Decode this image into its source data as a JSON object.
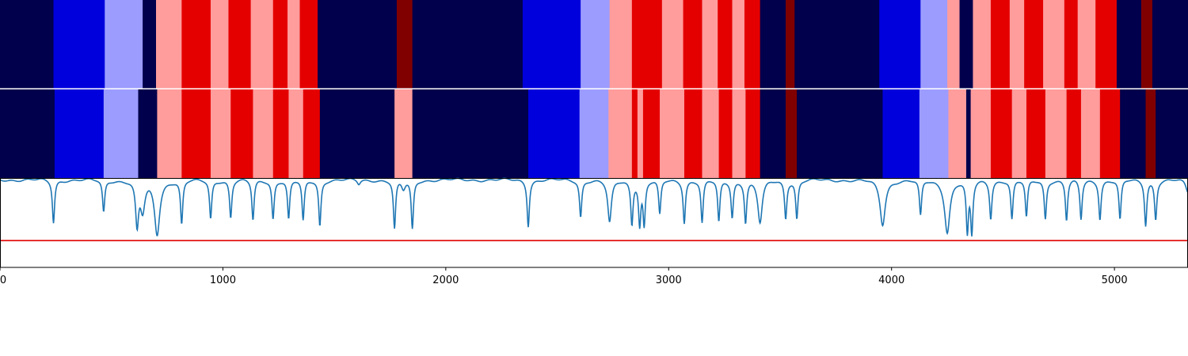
{
  "chart_data": {
    "type": "heatmap",
    "title": "",
    "xlabel": "",
    "ylabel": "",
    "xlim": [
      0,
      5330
    ],
    "xticks": [
      0,
      1000,
      2000,
      3000,
      4000,
      5000
    ],
    "xtick_labels": [
      "0",
      "1000",
      "2000",
      "3000",
      "4000",
      "5000"
    ],
    "grid": false,
    "legend": "none",
    "class_colors": [
      "#00004c",
      "#0000dd",
      "#9c9cff",
      "#ff9c9c",
      "#e50000",
      "#800000"
    ],
    "rows": [
      {
        "name": "",
        "segments": [
          [
            0,
            240,
            0
          ],
          [
            240,
            470,
            1
          ],
          [
            470,
            640,
            2
          ],
          [
            640,
            700,
            0
          ],
          [
            700,
            815,
            3
          ],
          [
            815,
            945,
            4
          ],
          [
            945,
            1025,
            3
          ],
          [
            1025,
            1125,
            4
          ],
          [
            1125,
            1225,
            3
          ],
          [
            1225,
            1290,
            4
          ],
          [
            1290,
            1345,
            3
          ],
          [
            1345,
            1425,
            4
          ],
          [
            1425,
            1780,
            0
          ],
          [
            1780,
            1850,
            5
          ],
          [
            1850,
            2345,
            0
          ],
          [
            2345,
            2605,
            1
          ],
          [
            2605,
            2735,
            2
          ],
          [
            2735,
            2835,
            3
          ],
          [
            2835,
            2970,
            4
          ],
          [
            2970,
            3065,
            3
          ],
          [
            3065,
            3150,
            4
          ],
          [
            3150,
            3220,
            3
          ],
          [
            3220,
            3285,
            4
          ],
          [
            3285,
            3340,
            3
          ],
          [
            3340,
            3410,
            4
          ],
          [
            3410,
            3525,
            0
          ],
          [
            3525,
            3565,
            5
          ],
          [
            3565,
            3945,
            0
          ],
          [
            3945,
            4130,
            1
          ],
          [
            4130,
            4250,
            2
          ],
          [
            4250,
            4305,
            3
          ],
          [
            4305,
            4365,
            0
          ],
          [
            4365,
            4445,
            3
          ],
          [
            4445,
            4530,
            4
          ],
          [
            4530,
            4595,
            3
          ],
          [
            4595,
            4680,
            4
          ],
          [
            4680,
            4775,
            3
          ],
          [
            4775,
            4835,
            4
          ],
          [
            4835,
            4915,
            3
          ],
          [
            4915,
            5010,
            4
          ],
          [
            5010,
            5120,
            0
          ],
          [
            5120,
            5170,
            5
          ],
          [
            5170,
            5330,
            0
          ]
        ]
      },
      {
        "name": "",
        "segments": [
          [
            0,
            245,
            0
          ],
          [
            245,
            465,
            1
          ],
          [
            465,
            620,
            2
          ],
          [
            620,
            705,
            0
          ],
          [
            705,
            815,
            3
          ],
          [
            815,
            945,
            4
          ],
          [
            945,
            1035,
            3
          ],
          [
            1035,
            1135,
            4
          ],
          [
            1135,
            1225,
            3
          ],
          [
            1225,
            1295,
            4
          ],
          [
            1295,
            1360,
            3
          ],
          [
            1360,
            1435,
            4
          ],
          [
            1435,
            1770,
            0
          ],
          [
            1770,
            1850,
            3
          ],
          [
            1850,
            2370,
            0
          ],
          [
            2370,
            2600,
            1
          ],
          [
            2600,
            2730,
            2
          ],
          [
            2730,
            2835,
            3
          ],
          [
            2835,
            2860,
            4
          ],
          [
            2860,
            2885,
            3
          ],
          [
            2885,
            2960,
            4
          ],
          [
            2960,
            3070,
            3
          ],
          [
            3070,
            3150,
            4
          ],
          [
            3150,
            3225,
            3
          ],
          [
            3225,
            3285,
            4
          ],
          [
            3285,
            3345,
            3
          ],
          [
            3345,
            3410,
            4
          ],
          [
            3410,
            3525,
            0
          ],
          [
            3525,
            3575,
            5
          ],
          [
            3575,
            3960,
            0
          ],
          [
            3960,
            4125,
            1
          ],
          [
            4125,
            4255,
            2
          ],
          [
            4255,
            4335,
            3
          ],
          [
            4335,
            4355,
            0
          ],
          [
            4355,
            4445,
            3
          ],
          [
            4445,
            4540,
            4
          ],
          [
            4540,
            4605,
            3
          ],
          [
            4605,
            4690,
            4
          ],
          [
            4690,
            4785,
            3
          ],
          [
            4785,
            4850,
            4
          ],
          [
            4850,
            4935,
            3
          ],
          [
            4935,
            5025,
            4
          ],
          [
            5025,
            5140,
            0
          ],
          [
            5140,
            5185,
            5
          ],
          [
            5185,
            5330,
            0
          ]
        ]
      }
    ],
    "line": {
      "color": "#1f77b4",
      "y_range": [
        0,
        1
      ],
      "baseline": 0.98,
      "dips": [
        [
          240,
          0.5,
          6
        ],
        [
          465,
          0.62,
          6
        ],
        [
          615,
          0.48,
          8
        ],
        [
          640,
          0.65,
          12
        ],
        [
          705,
          0.38,
          14
        ],
        [
          815,
          0.49,
          6
        ],
        [
          945,
          0.55,
          6
        ],
        [
          1035,
          0.56,
          6
        ],
        [
          1135,
          0.53,
          6
        ],
        [
          1225,
          0.55,
          6
        ],
        [
          1295,
          0.54,
          6
        ],
        [
          1360,
          0.52,
          6
        ],
        [
          1435,
          0.47,
          6
        ],
        [
          1610,
          0.93,
          8
        ],
        [
          1770,
          0.43,
          6
        ],
        [
          1810,
          0.88,
          10
        ],
        [
          1850,
          0.43,
          6
        ],
        [
          2370,
          0.47,
          6
        ],
        [
          2605,
          0.57,
          6
        ],
        [
          2735,
          0.5,
          10
        ],
        [
          2835,
          0.5,
          6
        ],
        [
          2870,
          0.5,
          6
        ],
        [
          2890,
          0.49,
          6
        ],
        [
          2960,
          0.59,
          6
        ],
        [
          3070,
          0.51,
          6
        ],
        [
          3150,
          0.5,
          6
        ],
        [
          3225,
          0.51,
          6
        ],
        [
          3285,
          0.57,
          6
        ],
        [
          3345,
          0.52,
          6
        ],
        [
          3410,
          0.5,
          12
        ],
        [
          3525,
          0.56,
          6
        ],
        [
          3575,
          0.55,
          6
        ],
        [
          3960,
          0.48,
          14
        ],
        [
          4130,
          0.58,
          6
        ],
        [
          4250,
          0.4,
          14
        ],
        [
          4340,
          0.4,
          6
        ],
        [
          4360,
          0.4,
          6
        ],
        [
          4445,
          0.56,
          6
        ],
        [
          4540,
          0.54,
          6
        ],
        [
          4605,
          0.56,
          6
        ],
        [
          4690,
          0.55,
          6
        ],
        [
          4785,
          0.53,
          6
        ],
        [
          4850,
          0.54,
          6
        ],
        [
          4935,
          0.55,
          6
        ],
        [
          5025,
          0.53,
          6
        ],
        [
          5140,
          0.48,
          6
        ],
        [
          5185,
          0.55,
          6
        ],
        [
          5330,
          0.84,
          12
        ]
      ]
    },
    "threshold": {
      "value": 0.3,
      "color": "#e00000"
    }
  }
}
